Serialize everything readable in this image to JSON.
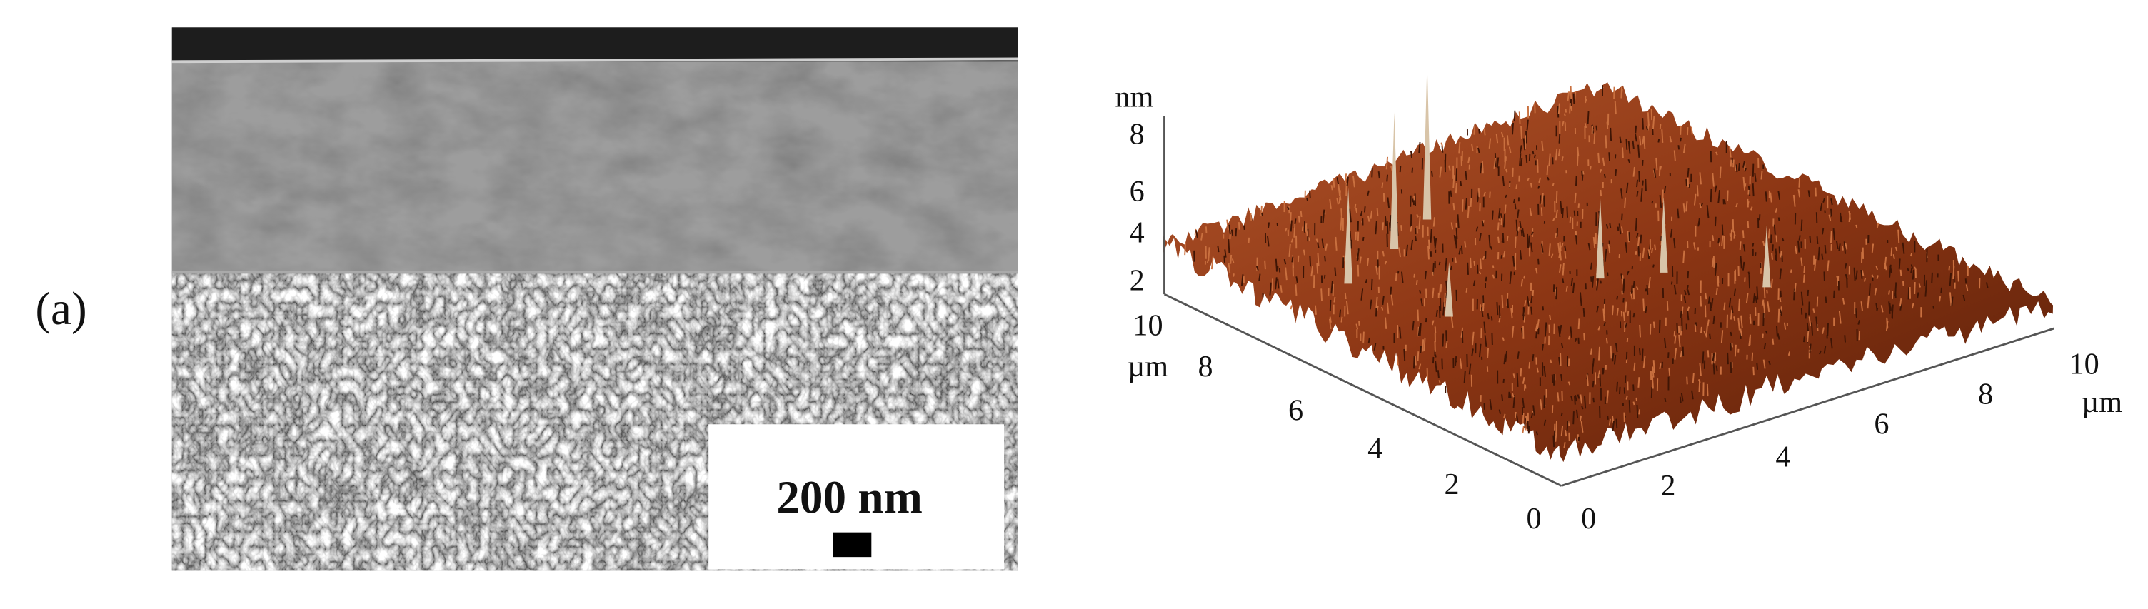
{
  "panel_label": "(a)",
  "sem": {
    "scale_bar": "200 nm"
  },
  "afm": {
    "z_unit": "nm",
    "z_ticks": [
      "8",
      "6",
      "4",
      "2"
    ],
    "y_unit": "µm",
    "y_ticks": [
      "10",
      "8",
      "6",
      "4",
      "2",
      "0"
    ],
    "x_unit": "µm",
    "x_ticks": [
      "0",
      "2",
      "4",
      "6",
      "8",
      "10"
    ]
  }
}
